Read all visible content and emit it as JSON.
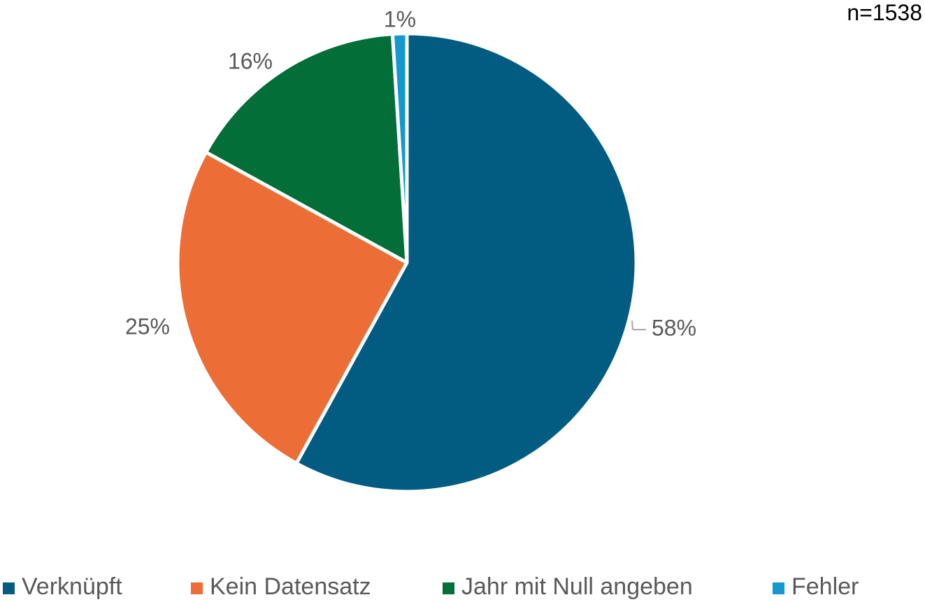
{
  "n_label": "n=1538",
  "chart_data": {
    "type": "pie",
    "categories": [
      "Verknüpft",
      "Kein Datensatz",
      "Jahr mit Null angeben",
      "Fehler"
    ],
    "values": [
      58,
      25,
      16,
      1
    ],
    "data_labels": [
      "58%",
      "25%",
      "16%",
      "1%"
    ],
    "colors": [
      "#025C82",
      "#EC6E36",
      "#036E38",
      "#1498CE"
    ],
    "legend_placement": "bottom",
    "start": "12 o'clock, clockwise"
  }
}
